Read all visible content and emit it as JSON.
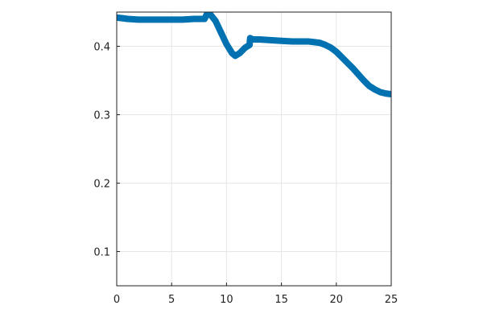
{
  "chart_data": {
    "type": "line",
    "title": "",
    "xlabel": "",
    "ylabel": "",
    "xlim": [
      0,
      25
    ],
    "ylim": [
      0.05,
      0.45
    ],
    "x_ticks": [
      0,
      5,
      10,
      15,
      20,
      25
    ],
    "x_tick_labels": [
      "0",
      "5",
      "10",
      "15",
      "20",
      "25"
    ],
    "y_ticks": [
      0.1,
      0.2,
      0.3,
      0.4
    ],
    "y_tick_labels": [
      "0.1",
      "0.2",
      "0.3",
      "0.4"
    ],
    "grid": true,
    "legend": "none",
    "colors": {
      "series": "#0072b2",
      "frame": "#222222",
      "grid": "#e6e6e6"
    },
    "series": [
      {
        "x": [
          0,
          0.5,
          1,
          2,
          3,
          4,
          5,
          6,
          7,
          8,
          8.3,
          8.5,
          9,
          9.5,
          10,
          10.5,
          10.8,
          11.2,
          11.7,
          12.1,
          12.15,
          12.4,
          13,
          14,
          15,
          16,
          17,
          17.5,
          18,
          18.5,
          19,
          19.5,
          20,
          20.5,
          21,
          21.5,
          22,
          22.5,
          23,
          23.5,
          24,
          24.5,
          25
        ],
        "y": [
          0.442,
          0.441,
          0.44,
          0.439,
          0.439,
          0.439,
          0.439,
          0.439,
          0.44,
          0.44,
          0.45,
          0.447,
          0.437,
          0.42,
          0.403,
          0.39,
          0.386,
          0.39,
          0.398,
          0.402,
          0.412,
          0.41,
          0.41,
          0.409,
          0.408,
          0.407,
          0.407,
          0.407,
          0.406,
          0.405,
          0.402,
          0.398,
          0.392,
          0.384,
          0.376,
          0.368,
          0.359,
          0.35,
          0.342,
          0.337,
          0.333,
          0.331,
          0.33
        ]
      }
    ]
  }
}
